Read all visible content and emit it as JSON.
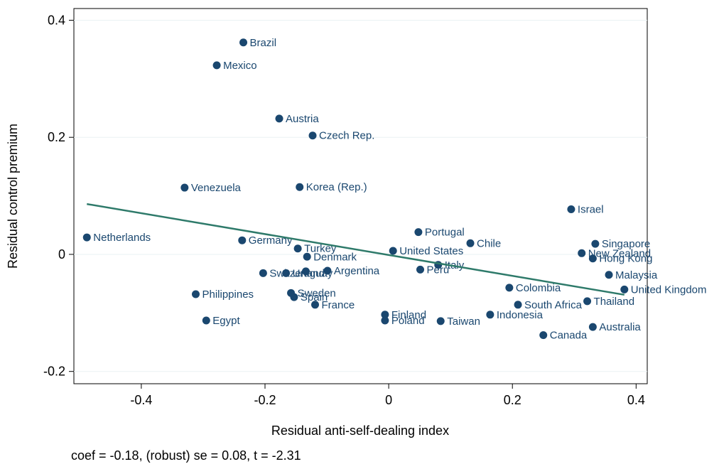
{
  "chart_data": {
    "type": "scatter",
    "xlabel": "Residual anti-self-dealing index",
    "ylabel": "Residual control premium",
    "note": "coef = -0.18, (robust) se = 0.08, t = -2.31",
    "color": "#1a476f",
    "label_color": "#1a476f",
    "grid": true,
    "xlim": [
      -0.509,
      0.418
    ],
    "ylim": [
      -0.221,
      0.42
    ],
    "xticks": [
      -0.4,
      -0.2,
      0,
      0.2,
      0.4
    ],
    "yticks": [
      -0.2,
      0,
      0.2,
      0.4
    ],
    "labels": [
      "Brazil",
      "Mexico",
      "Austria",
      "Czech Rep.",
      "Venezuela",
      "Korea (Rep.)",
      "Israel",
      "Netherlands",
      "Germany",
      "Portugal",
      "Chile",
      "Singapore",
      "Turkey",
      "United States",
      "New Zealand",
      "Denmark",
      "Hong Kong",
      "Italy",
      "Peru",
      "Argentina",
      "Uruguay",
      null,
      "Switzerland",
      "Malaysia",
      "Colombia",
      "United Kingdom",
      "Philippines",
      "Sweden",
      "Spain",
      "Thailand",
      "South Africa",
      "France",
      "Finland",
      "Indonesia",
      "Poland",
      "Egypt",
      "Taiwan",
      "Australia",
      "Canada"
    ],
    "x": [
      -0.235,
      -0.278,
      -0.177,
      -0.123,
      -0.33,
      -0.144,
      0.295,
      -0.488,
      -0.237,
      0.048,
      0.132,
      0.334,
      -0.147,
      0.007,
      0.312,
      -0.132,
      0.33,
      0.08,
      0.051,
      -0.099,
      -0.166,
      -0.134,
      -0.203,
      0.356,
      0.195,
      0.381,
      -0.312,
      -0.158,
      -0.153,
      0.321,
      0.209,
      -0.119,
      -0.006,
      0.164,
      -0.006,
      -0.295,
      0.084,
      0.33,
      0.25
    ],
    "y": [
      0.362,
      0.323,
      0.232,
      0.203,
      0.114,
      0.115,
      0.077,
      0.029,
      0.024,
      0.038,
      0.019,
      0.018,
      0.01,
      0.006,
      0.002,
      -0.004,
      -0.007,
      -0.018,
      -0.026,
      -0.028,
      -0.032,
      -0.029,
      -0.032,
      -0.035,
      -0.057,
      -0.06,
      -0.068,
      -0.066,
      -0.073,
      -0.08,
      -0.086,
      -0.086,
      -0.103,
      -0.103,
      -0.113,
      -0.113,
      -0.114,
      -0.124,
      -0.138
    ],
    "fit": {
      "color": "#2e7a6a",
      "x": [
        -0.488,
        0.381
      ],
      "y": [
        0.086,
        -0.069
      ]
    }
  }
}
